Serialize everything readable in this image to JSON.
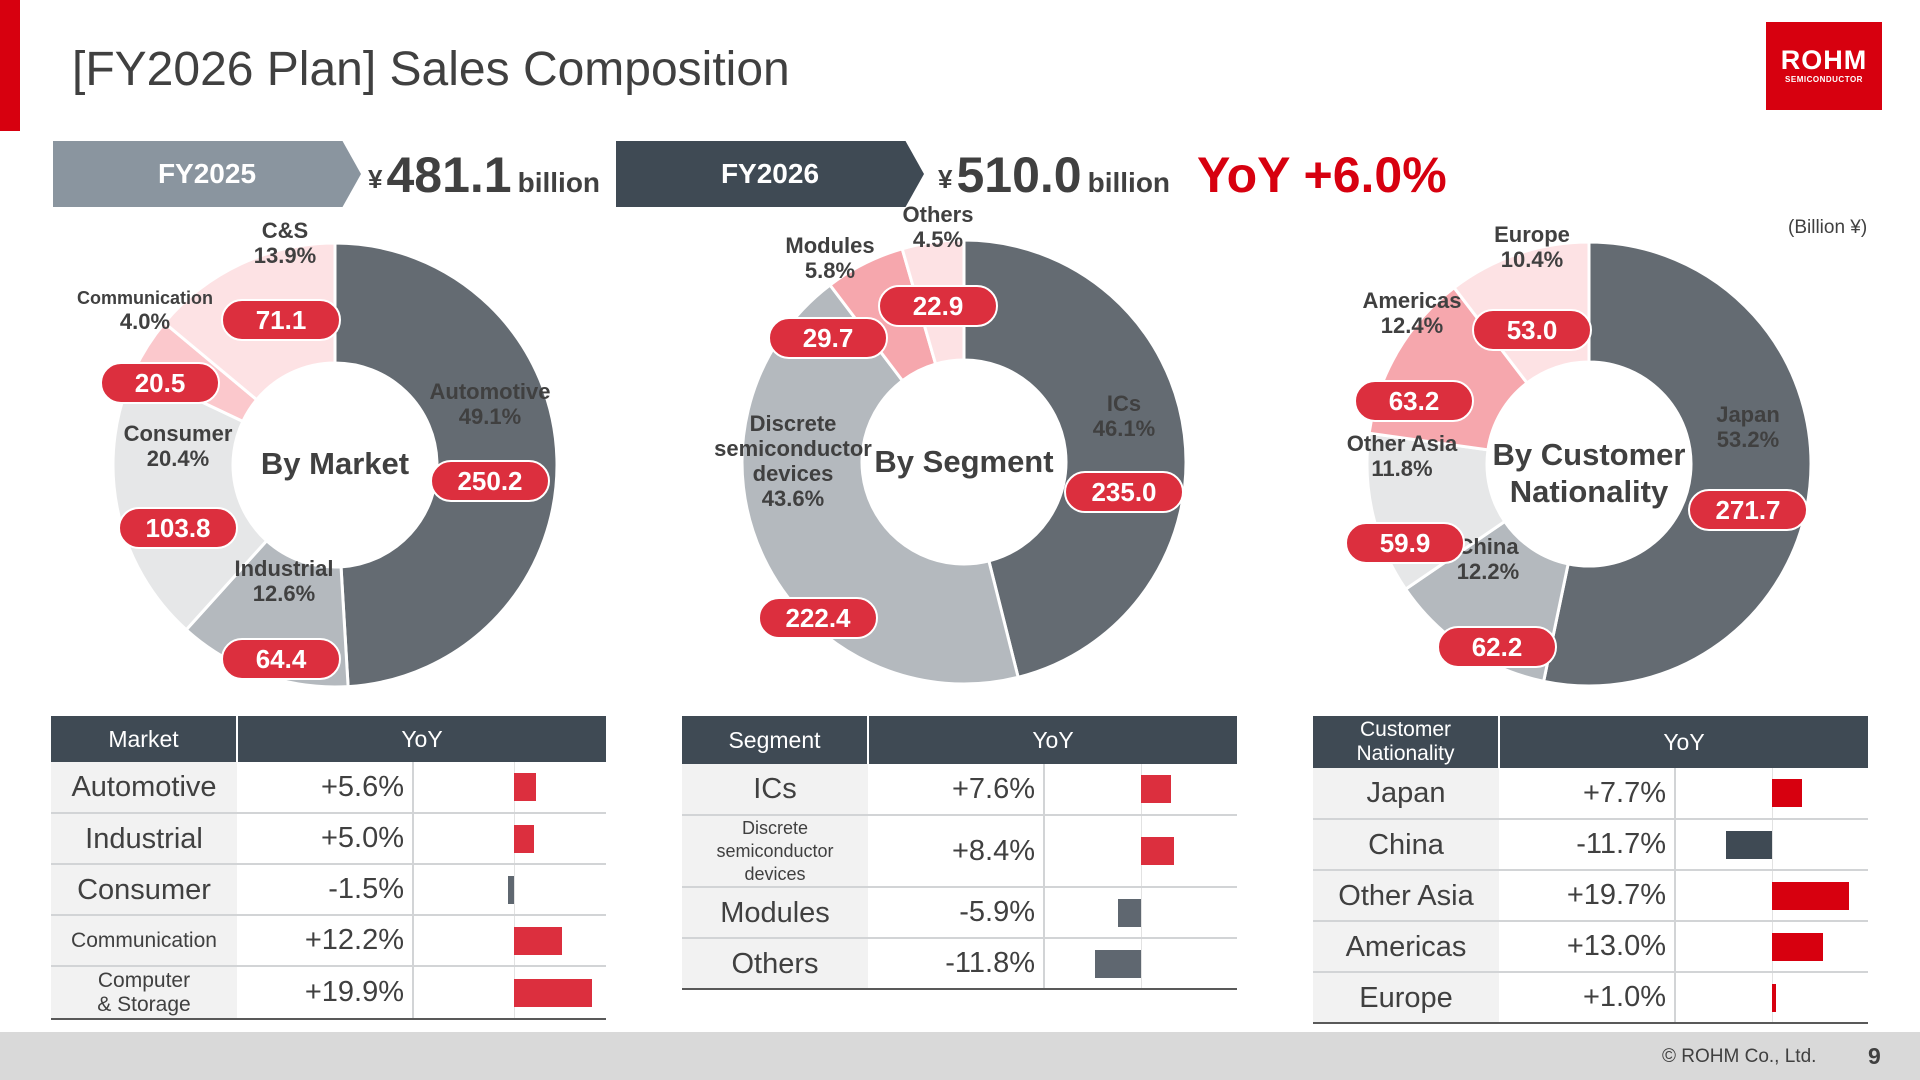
{
  "header": {
    "title": "[FY2026 Plan] Sales Composition",
    "logo_text": "ROHM",
    "logo_subtext": "SEMICONDUCTOR"
  },
  "summary": {
    "fy2025_label": "FY2025",
    "fy2025_currency": "¥",
    "fy2025_amount": "481.1",
    "fy2025_unit": "billion",
    "fy2026_label": "FY2026",
    "fy2026_currency": "¥",
    "fy2026_amount": "510.0",
    "fy2026_unit": "billion",
    "yoy_text": "YoY +6.0%",
    "unit_note": "(Billion ¥)"
  },
  "colors": {
    "brand_red": "#d7000f",
    "label_red": "#dc2f3e",
    "dark_gray": "#646b72",
    "mid_gray": "#b4b9be",
    "light_gray": "#e6e7e8",
    "pink_1": "#f6a7ad",
    "pink_2": "#fbc8cc",
    "pink_3": "#fde2e4",
    "negative_bar": "#3f4a54",
    "negative_bar_light": "#5f6770"
  },
  "chart_data": [
    {
      "type": "pie",
      "center_label": "By Market",
      "unit": "Billion ¥",
      "slices": [
        {
          "name": "Automotive",
          "percent": "49.1%",
          "value": 250.2,
          "value_label": "250.2",
          "color": "#646b72"
        },
        {
          "name": "Industrial",
          "percent": "12.6%",
          "value": 64.4,
          "value_label": "64.4",
          "color": "#b4b9be"
        },
        {
          "name": "Consumer",
          "percent": "20.4%",
          "value": 103.8,
          "value_label": "103.8",
          "color": "#e6e7e8"
        },
        {
          "name": "Communication",
          "percent": "4.0%",
          "value": 20.5,
          "value_label": "20.5",
          "color": "#fbc8cc"
        },
        {
          "name": "C&S",
          "percent": "13.9%",
          "value": 71.1,
          "value_label": "71.1",
          "color": "#fde2e4"
        }
      ]
    },
    {
      "type": "pie",
      "center_label": "By Segment",
      "unit": "Billion ¥",
      "slices": [
        {
          "name": "ICs",
          "percent": "46.1%",
          "value": 235.0,
          "value_label": "235.0",
          "color": "#646b72"
        },
        {
          "name": "Discrete semiconductor devices",
          "name_lines": [
            "Discrete",
            "semiconductor",
            "devices"
          ],
          "percent": "43.6%",
          "value": 222.4,
          "value_label": "222.4",
          "color": "#b4b9be"
        },
        {
          "name": "Modules",
          "percent": "5.8%",
          "value": 29.7,
          "value_label": "29.7",
          "color": "#f6a7ad"
        },
        {
          "name": "Others",
          "percent": "4.5%",
          "value": 22.9,
          "value_label": "22.9",
          "color": "#fde2e4"
        }
      ]
    },
    {
      "type": "pie",
      "center_label": "By Customer Nationality",
      "center_lines": [
        "By Customer",
        "Nationality"
      ],
      "unit": "Billion ¥",
      "slices": [
        {
          "name": "Japan",
          "percent": "53.2%",
          "value": 271.7,
          "value_label": "271.7",
          "color": "#646b72"
        },
        {
          "name": "China",
          "percent": "12.2%",
          "value": 62.2,
          "value_label": "62.2",
          "color": "#b4b9be"
        },
        {
          "name": "Other Asia",
          "percent": "11.8%",
          "value": 59.9,
          "value_label": "59.9",
          "color": "#e6e7e8"
        },
        {
          "name": "Americas",
          "percent": "12.4%",
          "value": 63.2,
          "value_label": "63.2",
          "color": "#f6a7ad"
        },
        {
          "name": "Europe",
          "percent": "10.4%",
          "value": 53.0,
          "value_label": "53.0",
          "color": "#fde2e4"
        }
      ]
    },
    {
      "type": "table",
      "title_column": "Market",
      "yoy_column": "YoY",
      "rows": [
        {
          "name": "Automotive",
          "yoy_label": "+5.6%",
          "yoy": 5.6
        },
        {
          "name": "Industrial",
          "yoy_label": "+5.0%",
          "yoy": 5.0
        },
        {
          "name": "Consumer",
          "yoy_label": "-1.5%",
          "yoy": -1.5
        },
        {
          "name": "Communication",
          "yoy_label": "+12.2%",
          "yoy": 12.2
        },
        {
          "name": "Computer & Storage",
          "name_lines": [
            "Computer",
            "& Storage"
          ],
          "yoy_label": "+19.9%",
          "yoy": 19.9
        }
      ]
    },
    {
      "type": "table",
      "title_column": "Segment",
      "yoy_column": "YoY",
      "rows": [
        {
          "name": "ICs",
          "yoy_label": "+7.6%",
          "yoy": 7.6
        },
        {
          "name": "Discrete semiconductor devices",
          "name_lines": [
            "Discrete",
            "semiconductor",
            "devices"
          ],
          "yoy_label": "+8.4%",
          "yoy": 8.4
        },
        {
          "name": "Modules",
          "yoy_label": "-5.9%",
          "yoy": -5.9
        },
        {
          "name": "Others",
          "yoy_label": "-11.8%",
          "yoy": -11.8
        }
      ]
    },
    {
      "type": "table",
      "title_column": "Customer Nationality",
      "title_lines": [
        "Customer",
        "Nationality"
      ],
      "yoy_column": "YoY",
      "rows": [
        {
          "name": "Japan",
          "yoy_label": "+7.7%",
          "yoy": 7.7
        },
        {
          "name": "China",
          "yoy_label": "-11.7%",
          "yoy": -11.7
        },
        {
          "name": "Other Asia",
          "yoy_label": "+19.7%",
          "yoy": 19.7
        },
        {
          "name": "Americas",
          "yoy_label": "+13.0%",
          "yoy": 13.0
        },
        {
          "name": "Europe",
          "yoy_label": "+1.0%",
          "yoy": 1.0
        }
      ]
    }
  ],
  "footer": {
    "copyright": "© ROHM Co., Ltd.",
    "page_number": "9"
  }
}
